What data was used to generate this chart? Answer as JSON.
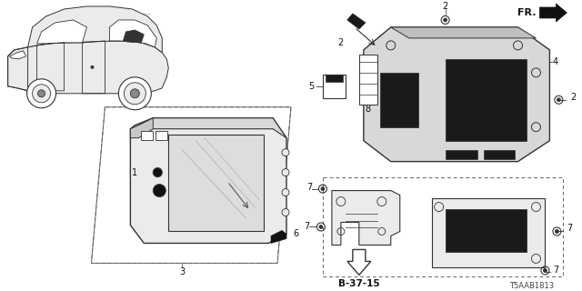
{
  "bg_color": "#ffffff",
  "part_number_code": "T5AAB1813",
  "diagram_ref": "B-37-15",
  "fr_label": "FR.",
  "line_color": "#333333",
  "dashed_color": "#666666",
  "text_color": "#111111",
  "gray_fill": "#d8d8d8",
  "light_gray": "#ebebeb",
  "dark_fill": "#1a1a1a"
}
